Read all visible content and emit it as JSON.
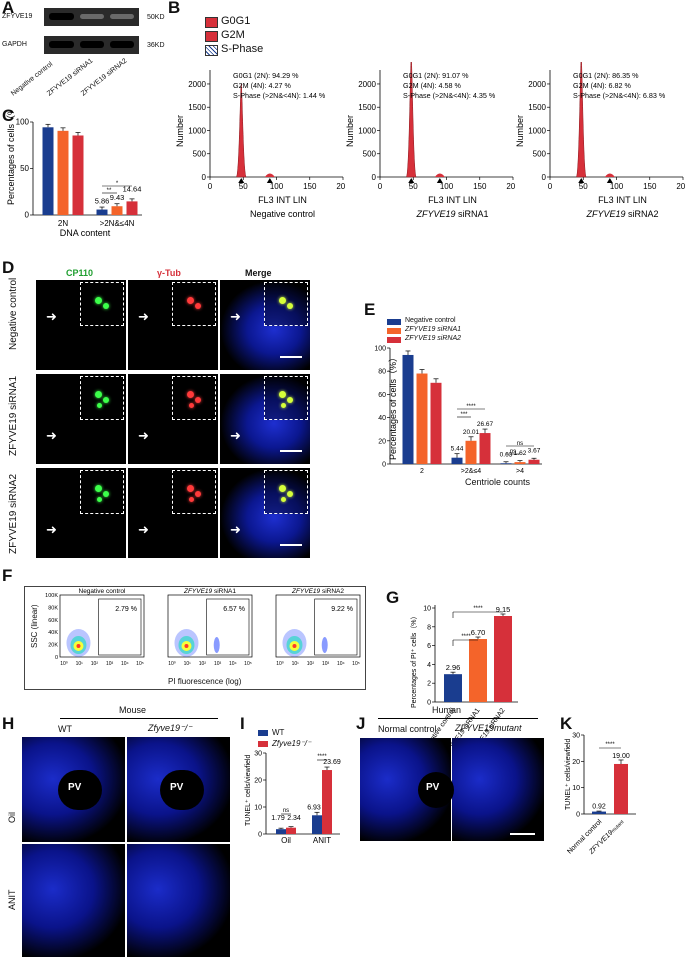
{
  "panels": {
    "A": {
      "letter": "A",
      "rows": [
        "ZFYVE19",
        "GAPDH"
      ],
      "sizes": [
        "50KD",
        "36KD"
      ],
      "lanes": [
        "Negative control",
        "ZFYVE19 siRNA1",
        "ZFYVE19 siRNA2"
      ]
    },
    "B": {
      "letter": "B",
      "legend": [
        "G0G1",
        "G2M",
        "S-Phase"
      ],
      "ylabel": "Number",
      "xlabel": "FL3 INT LIN",
      "subplots": [
        {
          "name": "Negative control",
          "stats": [
            "G0G1 (2N): 94.29 %",
            "G2M (4N): 4.27 %",
            "S-Phase (>2N&<4N): 1.44 %"
          ]
        },
        {
          "name": "ZFYVE19 siRNA1",
          "stats": [
            "G0G1 (2N): 91.07 %",
            "G2M (4N): 4.58 %",
            "S-Phase (>2N&<4N): 4.35 %"
          ]
        },
        {
          "name": "ZFYVE19 siRNA2",
          "stats": [
            "G0G1 (2N): 86.35 %",
            "G2M (4N): 6.82 %",
            "S-Phase (>2N&<4N): 6.83 %"
          ]
        }
      ],
      "yticks": [
        "0",
        "500",
        "1000",
        "1500",
        "2000"
      ],
      "xticks": [
        "0",
        "50",
        "100",
        "150",
        "200"
      ]
    },
    "C": {
      "letter": "C",
      "ylabel": "Percentages of cells（%）",
      "xlabel": "DNA content",
      "yticks": [
        "0",
        "50",
        "100"
      ]
    },
    "D": {
      "letter": "D",
      "cols": [
        "CP110",
        "γ-Tub",
        "Merge"
      ],
      "rows": [
        "Negative control",
        "ZFYVE19 siRNA1",
        "ZFYVE19 siRNA2"
      ]
    },
    "E": {
      "letter": "E",
      "ylabel": "Percentages of cells（%）",
      "xlabel": "Centriole counts",
      "yticks": [
        "0",
        "20",
        "40",
        "60",
        "80",
        "100"
      ],
      "legend": [
        "Negative control",
        "ZFYVE19  siRNA1",
        "ZFYVE19  siRNA2"
      ]
    },
    "F": {
      "letter": "F",
      "titles": [
        "Negative control",
        "ZFYVE19 siRNA1",
        "ZFYVE19 siRNA2"
      ],
      "gates": [
        "2.79 %",
        "6.57 %",
        "9.22 %"
      ],
      "ylabel": "SSC (linear)",
      "xlabel": "PI fluorescence (log)",
      "yticks": [
        "100K",
        "80K",
        "60K",
        "40K",
        "20K",
        "0"
      ],
      "xticks": [
        "10⁰",
        "10¹",
        "10²",
        "10³",
        "10⁴",
        "10⁵"
      ]
    },
    "G": {
      "letter": "G",
      "ylabel": "Percentages of PI⁺ cells（%）",
      "yticks": [
        "0",
        "2",
        "4",
        "6",
        "8",
        "10"
      ]
    },
    "H": {
      "letter": "H",
      "group": "Mouse",
      "cols": [
        "WT",
        "Zfyve19⁻/⁻"
      ],
      "rows": [
        "Oil",
        "ANIT"
      ],
      "pv": "PV"
    },
    "I": {
      "letter": "I",
      "ylabel": "TUNEL⁺ cells/viewfield",
      "legend": [
        "WT",
        "Zfyve19⁻/⁻"
      ],
      "yticks": [
        "0",
        "10",
        "20",
        "30"
      ]
    },
    "J": {
      "letter": "J",
      "group": "Human",
      "cols": [
        "Normal control",
        "ZFYVE19mutant"
      ],
      "pv": "PV"
    },
    "K": {
      "letter": "K",
      "ylabel": "TUNEL⁺ cells/viewfield",
      "yticks": [
        "0",
        "10",
        "20",
        "30"
      ]
    }
  },
  "chart_data": [
    {
      "type": "bar",
      "panel": "C",
      "xlabel": "DNA content",
      "ylabel": "Percentages of cells（%）",
      "ylim": [
        0,
        100
      ],
      "categories": [
        "2N",
        ">2N&≤4N"
      ],
      "series": [
        {
          "name": "Negative control",
          "values": [
            94.3,
            5.86
          ],
          "color": "#1a3d8f"
        },
        {
          "name": "ZFYVE19 siRNA1",
          "values": [
            90.5,
            9.43
          ],
          "color": "#f4642a"
        },
        {
          "name": "ZFYVE19 siRNA2",
          "values": [
            85.5,
            14.64
          ],
          "color": "#d6303a"
        }
      ],
      "labels": [
        "5.86",
        "9.43",
        "14.64"
      ],
      "sig": [
        "**",
        "*"
      ]
    },
    {
      "type": "bar",
      "panel": "E",
      "xlabel": "Centriole counts",
      "ylabel": "Percentages of cells（%）",
      "ylim": [
        0,
        100
      ],
      "categories": [
        "2",
        ">2&≤4",
        ">4"
      ],
      "series": [
        {
          "name": "Negative control",
          "values": [
            94,
            5.44,
            0.63
          ],
          "color": "#1a3d8f"
        },
        {
          "name": "ZFYVE19  siRNA1",
          "values": [
            78,
            20.01,
            1.62
          ],
          "color": "#f4642a"
        },
        {
          "name": "ZFYVE19  siRNA2",
          "values": [
            70,
            26.67,
            3.67
          ],
          "color": "#d6303a"
        }
      ],
      "labels": [
        "5.44",
        "20.01",
        "26.67",
        "0.63",
        "1.62",
        "3.67"
      ],
      "sig": [
        "****",
        "***",
        "ns",
        "ns"
      ]
    },
    {
      "type": "bar",
      "panel": "G",
      "ylabel": "Percentages of PI⁺ cells（%）",
      "ylim": [
        0,
        10
      ],
      "categories": [
        "Negative control",
        "ZFYVE19 siRNA1",
        "ZFYVE19 siRNA2"
      ],
      "values": [
        2.96,
        6.7,
        9.15
      ],
      "labels": [
        "2.96",
        "6.70",
        "9.15"
      ],
      "sig": [
        "****",
        "****"
      ]
    },
    {
      "type": "bar",
      "panel": "I",
      "ylabel": "TUNEL⁺ cells/viewfield",
      "ylim": [
        0,
        30
      ],
      "categories": [
        "Oil",
        "ANIT"
      ],
      "series": [
        {
          "name": "WT",
          "values": [
            1.79,
            6.93
          ],
          "color": "#1a3d8f"
        },
        {
          "name": "Zfyve19⁻/⁻",
          "values": [
            2.34,
            23.69
          ],
          "color": "#d6303a"
        }
      ],
      "labels": [
        "1.79",
        "2.34",
        "6.93",
        "23.69"
      ],
      "sig": [
        "ns",
        "****"
      ]
    },
    {
      "type": "bar",
      "panel": "K",
      "ylabel": "TUNEL⁺ cells/viewfield",
      "ylim": [
        0,
        30
      ],
      "categories": [
        "Normal control",
        "ZFYVE19mutant"
      ],
      "values": [
        0.92,
        19.0
      ],
      "labels": [
        "0.92",
        "19.00"
      ],
      "sig": [
        "****"
      ]
    }
  ]
}
